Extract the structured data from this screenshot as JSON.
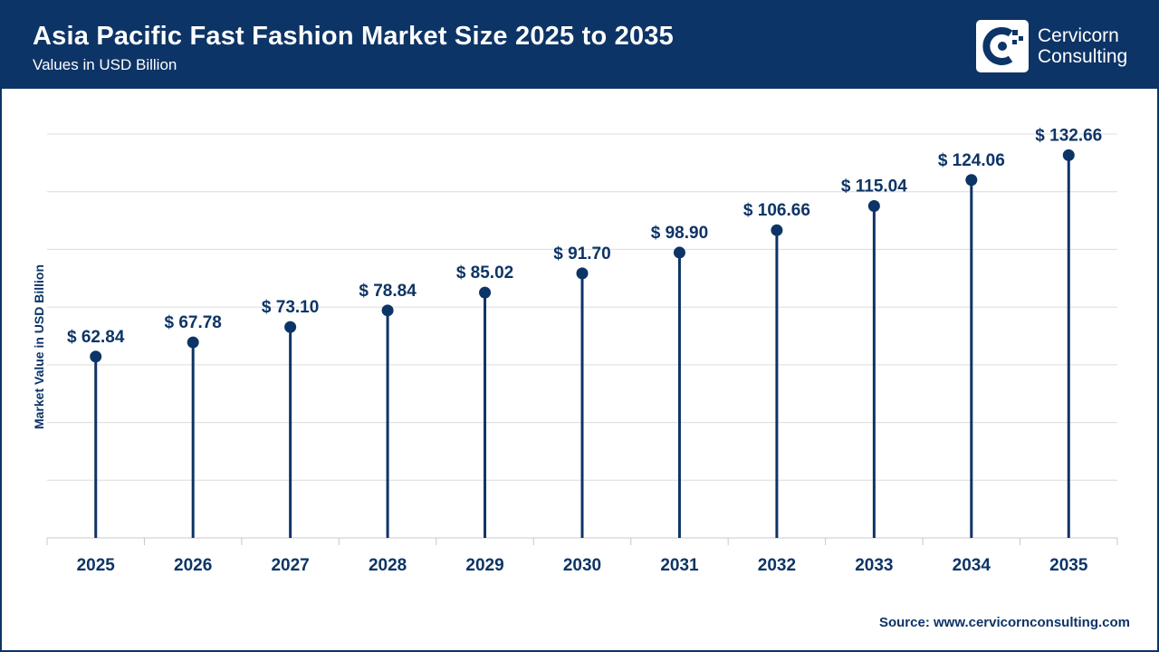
{
  "header": {
    "title": "Asia Pacific Fast Fashion Market Size 2025 to 2035",
    "subtitle": "Values in USD Billion"
  },
  "logo": {
    "line1": "Cervicorn",
    "line2": "Consulting",
    "icon": "cervicorn-c-logo-icon"
  },
  "source": {
    "label": "Source:",
    "url": "www.cervicornconsulting.com"
  },
  "colors": {
    "brand": "#0d3466",
    "grid": "#dcdcdc"
  },
  "chart_data": {
    "type": "lollipop",
    "categories": [
      "2025",
      "2026",
      "2027",
      "2028",
      "2029",
      "2030",
      "2031",
      "2032",
      "2033",
      "2034",
      "2035"
    ],
    "values": [
      62.84,
      67.78,
      73.1,
      78.84,
      85.02,
      91.7,
      98.9,
      106.66,
      115.04,
      124.06,
      132.66
    ],
    "data_labels": [
      "$ 62.84",
      "$ 67.78",
      "$ 73.10",
      "$ 78.84",
      "$ 85.02",
      "$ 91.70",
      "$ 98.90",
      "$ 106.66",
      "$ 115.04",
      "$ 124.06",
      "$ 132.66"
    ],
    "ylabel": "Market Value in USD Billion",
    "ylim": [
      0,
      140
    ],
    "y_grid_step": 20,
    "grid": true,
    "legend": false
  }
}
